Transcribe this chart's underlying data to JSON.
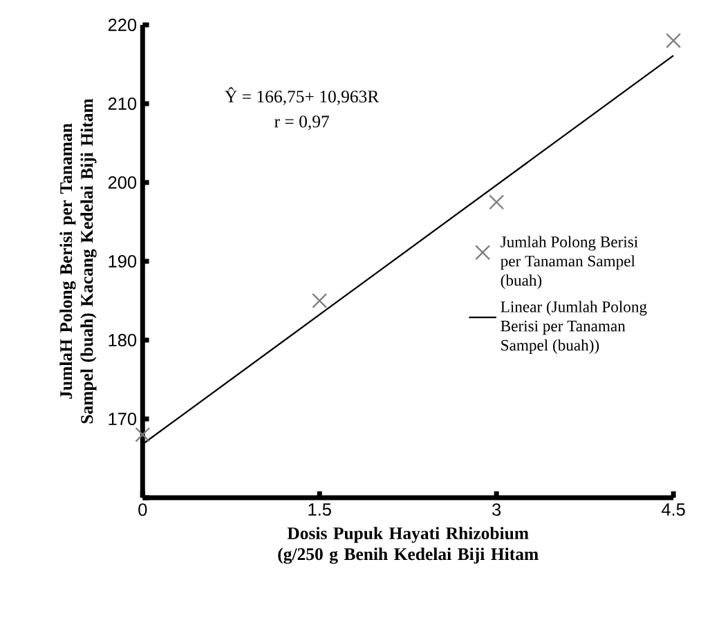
{
  "chart_data": {
    "type": "scatter",
    "xlabel": "Dosis Pupuk Hayati Rhizobium (g/250 g Benih Kedelai Biji Hitam",
    "ylabel": "JumlaH Polong Berisi per Tanaman Sampel (buah) Kacang Kedelai Biji Hitam",
    "xlim": [
      0,
      4.5
    ],
    "ylim": [
      160,
      220
    ],
    "xticks": [
      0,
      1.5,
      3,
      4.5
    ],
    "yticks": [
      {
        "value": 160,
        "label": null
      },
      170,
      180,
      190,
      200,
      210,
      220
    ],
    "annotations": [
      "Ŷ = 166,75+ 10,963R",
      "r = 0,97"
    ],
    "legend": "right",
    "series": [
      {
        "name": "Jumlah Polong Berisi per Tanaman Sampel (buah)",
        "marker": "cross",
        "color": "#7f7f7f",
        "x": [
          0,
          1.5,
          3,
          4.5
        ],
        "values": [
          168,
          185,
          197.5,
          218
        ]
      },
      {
        "name": "Linear (Jumlah Polong Berisi per Tanaman Sampel (buah))",
        "type": "line",
        "color": "#000000",
        "x": [
          0,
          4.5
        ],
        "values": [
          166.8,
          216.1
        ]
      }
    ]
  }
}
